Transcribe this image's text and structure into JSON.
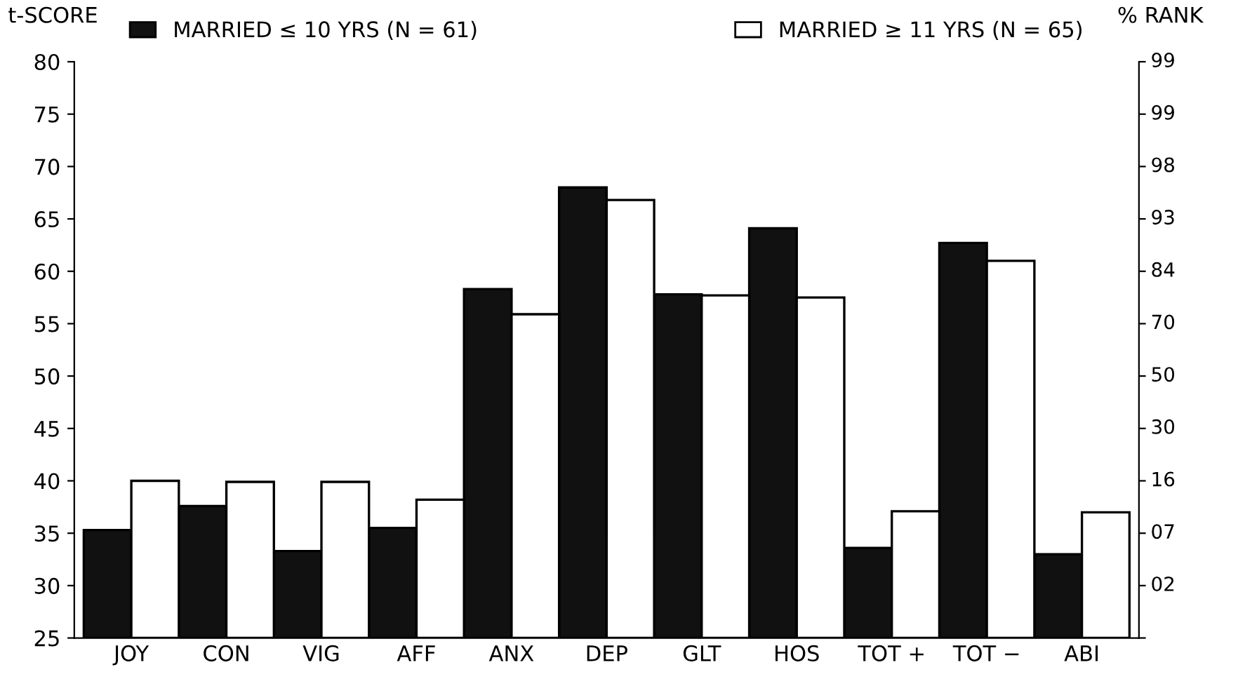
{
  "chart_data": {
    "type": "bar",
    "ylabel": "t-SCORE",
    "y2label": "% RANK",
    "categories": [
      "JOY",
      "CON",
      "VIG",
      "AFF",
      "ANX",
      "DEP",
      "GLT",
      "HOS",
      "TOT +",
      "TOT −",
      "ABI"
    ],
    "series": [
      {
        "name": "MARRIED ≤ 10 YRS (N = 61)",
        "color": "#111111",
        "values": [
          35.3,
          37.6,
          33.3,
          35.5,
          58.3,
          68,
          57.8,
          64.1,
          33.6,
          62.7,
          33
        ]
      },
      {
        "name": "MARRIED ≥ 11 YRS (N = 65)",
        "color": "#ffffff",
        "values": [
          40,
          39.9,
          39.9,
          38.2,
          55.9,
          66.8,
          57.7,
          57.5,
          37.1,
          61,
          37
        ]
      }
    ],
    "ylim": [
      25,
      80
    ],
    "yticks": [
      25,
      30,
      35,
      40,
      45,
      50,
      55,
      60,
      65,
      70,
      75,
      80
    ],
    "annotations": [
      "02",
      "07",
      "16",
      "30",
      "50",
      "70",
      "84",
      "93",
      "98",
      "99",
      "99"
    ],
    "legend": "top",
    "grid": false
  }
}
